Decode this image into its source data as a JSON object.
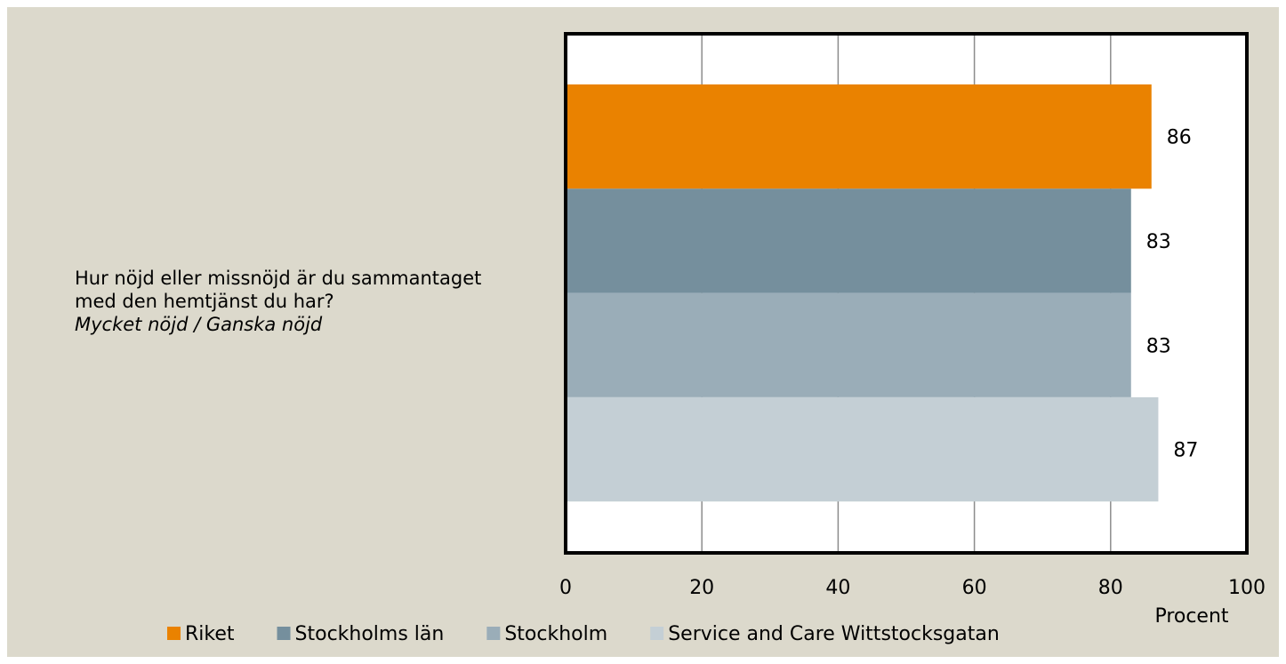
{
  "chart_data": {
    "type": "bar",
    "orientation": "horizontal",
    "categories": [
      "Hur nöjd eller missnöjd är du sammantaget med den hemtjänst du har?"
    ],
    "category_note": "Mycket nöjd / Ganska nöjd",
    "series": [
      {
        "name": "Riket",
        "color": "#ea8200",
        "values": [
          86
        ]
      },
      {
        "name": "Stockholms län",
        "color": "#758f9d",
        "values": [
          83
        ]
      },
      {
        "name": "Stockholm",
        "color": "#9aadb8",
        "values": [
          83
        ]
      },
      {
        "name": "Service and Care Wittstocksgatan",
        "color": "#c4cfd5",
        "values": [
          87
        ]
      }
    ],
    "x_label": "Procent",
    "xlim": [
      0,
      100
    ],
    "xticks": [
      0,
      20,
      40,
      60,
      80,
      100
    ],
    "grid": true,
    "legend": "bottom"
  }
}
